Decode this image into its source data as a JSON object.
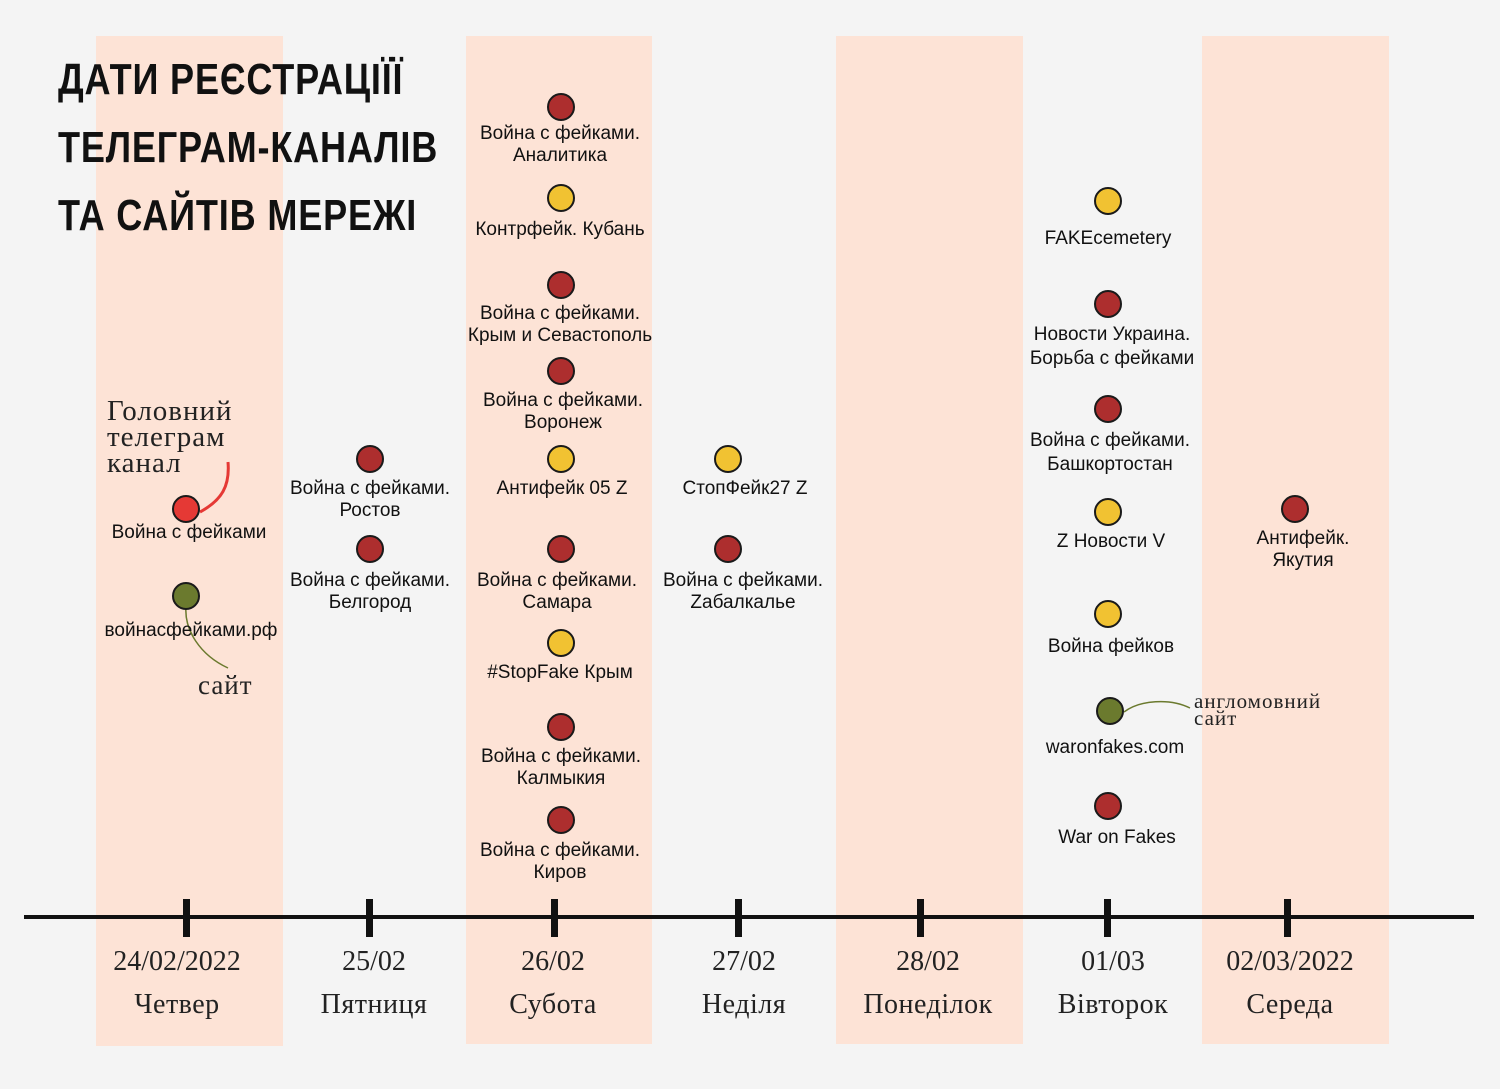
{
  "title_lines": [
    "ДАТИ РЕЄСТРАЦІЇЇ",
    "ТЕЛЕГРАМ-КАНАЛІВ",
    "ТА САЙТІВ МЕРЕЖІ"
  ],
  "colors": {
    "background": "#f4f4f4",
    "band": "#fde3d6",
    "telegram_red": "#ad2e2e",
    "telegram_yellow": "#f1c232",
    "main_channel": "#e53935",
    "website_green": "#6b7a2e",
    "axis": "#111111"
  },
  "legend_notes": {
    "main_channel": "Головний\nтелеграм\nканал",
    "site": "сайт",
    "english_site": "англомовний\nсайт"
  },
  "days": [
    {
      "date": "24/02/2022",
      "weekday": "Четвер",
      "highlighted": true,
      "items": [
        {
          "label": "Война с фейками",
          "type": "main_channel"
        },
        {
          "label": "войнасфейками.рф",
          "type": "website"
        }
      ]
    },
    {
      "date": "25/02",
      "weekday": "Пятниця",
      "highlighted": false,
      "items": [
        {
          "label": "Война с фейками.\nРостов",
          "type": "red"
        },
        {
          "label": "Война с фейками.\nБелгород",
          "type": "red"
        }
      ]
    },
    {
      "date": "26/02",
      "weekday": "Субота",
      "highlighted": true,
      "items": [
        {
          "label": "Война с фейками.\nАналитика",
          "type": "red"
        },
        {
          "label": "Контрфейк. Кубань",
          "type": "yellow"
        },
        {
          "label": "Война с фейками.\nКрым и Севастополь",
          "type": "red"
        },
        {
          "label": "Война с фейками.\nВоронеж",
          "type": "red"
        },
        {
          "label": "Антифейк 05 Z",
          "type": "yellow"
        },
        {
          "label": "Война с фейками.\nСамара",
          "type": "red"
        },
        {
          "label": "#StopFake Крым",
          "type": "yellow"
        },
        {
          "label": "Война с фейками.\nКалмыкия",
          "type": "red"
        },
        {
          "label": "Война с фейками.\nКиров",
          "type": "red"
        }
      ]
    },
    {
      "date": "27/02",
      "weekday": "Неділя",
      "highlighted": false,
      "items": [
        {
          "label": "СтопФейк27 Z",
          "type": "yellow"
        },
        {
          "label": "Война с фейками.\nZабалкалье",
          "type": "red"
        }
      ]
    },
    {
      "date": "28/02",
      "weekday": "Понеділок",
      "highlighted": true,
      "items": []
    },
    {
      "date": "01/03",
      "weekday": "Вівторок",
      "highlighted": false,
      "items": [
        {
          "label": "FAKEcemetery",
          "type": "yellow"
        },
        {
          "label": "Новости Украина.\nБорьба с фейками",
          "type": "red"
        },
        {
          "label": "Война с фейками.\nБашкортостан",
          "type": "red"
        },
        {
          "label": "Z Новости V",
          "type": "yellow"
        },
        {
          "label": "Война фейков",
          "type": "yellow"
        },
        {
          "label": "waronfakes.com",
          "type": "website"
        },
        {
          "label": "War on Fakes",
          "type": "red"
        }
      ]
    },
    {
      "date": "02/03/2022",
      "weekday": "Середа",
      "highlighted": true,
      "items": [
        {
          "label": "Антифейк.\nЯкутия",
          "type": "red"
        }
      ]
    }
  ]
}
